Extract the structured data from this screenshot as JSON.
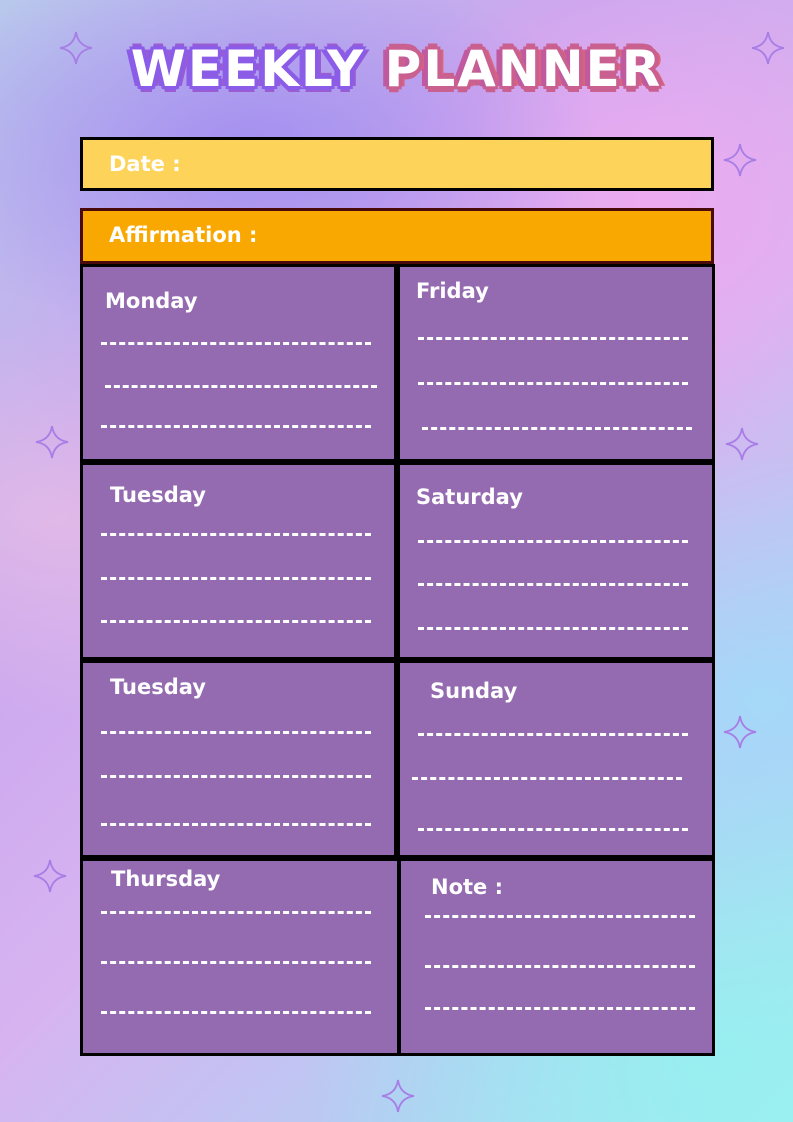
{
  "title": {
    "word1": "WEEKLY",
    "word2": "PLANNER"
  },
  "date_label": "Date :",
  "affirmation_label": "Affirmation :",
  "days": {
    "monday": "Monday",
    "friday": "Friday",
    "tuesday": "Tuesday",
    "saturday": "Saturday",
    "tuesday_2": "Tuesday",
    "sunday": "Sunday",
    "thursday": "Thursday",
    "note": "Note :"
  },
  "colors": {
    "date_bar": "#fdd35a",
    "affirmation_bar": "#f8a800",
    "cell": "#946bb0"
  }
}
